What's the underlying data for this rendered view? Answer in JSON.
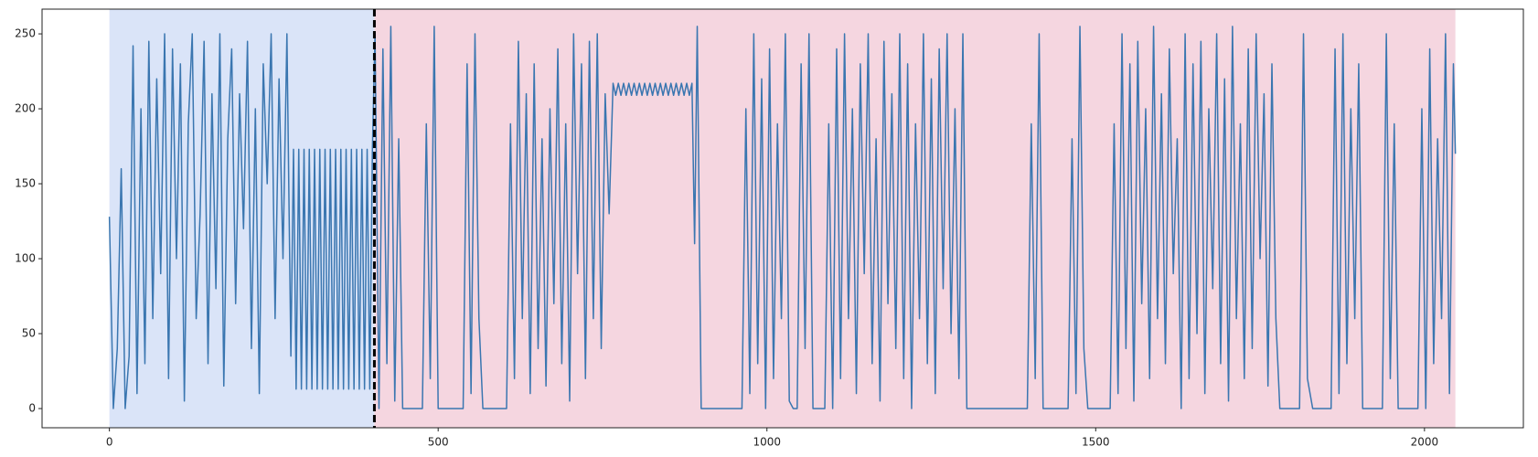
{
  "chart_data": {
    "type": "line",
    "xlim": [
      -102.4,
      2150.4
    ],
    "ylim": [
      -12.8,
      266.5
    ],
    "xticks": [
      0,
      500,
      1000,
      1500,
      2000
    ],
    "yticks": [
      0,
      50,
      100,
      150,
      200,
      250
    ],
    "grid": false,
    "color": "#3a76b0",
    "spans": [
      {
        "start": 0,
        "end": 403,
        "color": "#dae4f8"
      },
      {
        "start": 403,
        "end": 2047,
        "color": "#f5d6e0"
      }
    ],
    "vline": 403,
    "x": [
      0,
      6,
      12,
      18,
      24,
      30,
      36,
      42,
      48,
      54,
      60,
      66,
      72,
      78,
      84,
      90,
      96,
      102,
      108,
      114,
      120,
      126,
      132,
      138,
      144,
      150,
      156,
      162,
      168,
      174,
      180,
      186,
      192,
      198,
      204,
      210,
      216,
      222,
      228,
      234,
      240,
      246,
      252,
      258,
      264,
      270,
      276,
      280,
      284,
      288,
      292,
      296,
      300,
      304,
      308,
      312,
      316,
      320,
      324,
      328,
      332,
      336,
      340,
      344,
      348,
      352,
      356,
      360,
      364,
      368,
      372,
      376,
      380,
      384,
      388,
      392,
      396,
      400,
      404,
      410,
      416,
      422,
      428,
      434,
      440,
      446,
      476,
      482,
      488,
      494,
      500,
      538,
      544,
      550,
      556,
      562,
      568,
      604,
      610,
      616,
      622,
      628,
      634,
      640,
      646,
      652,
      658,
      664,
      670,
      676,
      682,
      688,
      694,
      700,
      706,
      712,
      718,
      724,
      730,
      736,
      742,
      748,
      754,
      760,
      766,
      770,
      774,
      778,
      782,
      786,
      790,
      794,
      798,
      802,
      806,
      810,
      814,
      818,
      822,
      826,
      830,
      834,
      838,
      842,
      846,
      850,
      854,
      858,
      862,
      866,
      870,
      874,
      878,
      882,
      886,
      890,
      894,
      900,
      956,
      962,
      968,
      974,
      980,
      986,
      992,
      998,
      1004,
      1010,
      1016,
      1022,
      1028,
      1034,
      1040,
      1046,
      1052,
      1058,
      1064,
      1070,
      1076,
      1082,
      1088,
      1094,
      1100,
      1106,
      1112,
      1118,
      1124,
      1130,
      1136,
      1142,
      1148,
      1154,
      1160,
      1166,
      1172,
      1178,
      1184,
      1190,
      1196,
      1202,
      1208,
      1214,
      1220,
      1226,
      1232,
      1238,
      1244,
      1250,
      1256,
      1262,
      1268,
      1274,
      1280,
      1286,
      1292,
      1298,
      1304,
      1396,
      1402,
      1408,
      1414,
      1420,
      1458,
      1464,
      1470,
      1476,
      1482,
      1488,
      1522,
      1528,
      1534,
      1540,
      1546,
      1552,
      1558,
      1564,
      1570,
      1576,
      1582,
      1588,
      1594,
      1600,
      1606,
      1612,
      1618,
      1624,
      1630,
      1636,
      1642,
      1648,
      1654,
      1660,
      1666,
      1672,
      1678,
      1684,
      1690,
      1696,
      1702,
      1708,
      1714,
      1720,
      1726,
      1732,
      1738,
      1744,
      1750,
      1756,
      1762,
      1768,
      1774,
      1780,
      1810,
      1816,
      1822,
      1830,
      1858,
      1864,
      1870,
      1876,
      1882,
      1888,
      1894,
      1900,
      1906,
      1936,
      1942,
      1948,
      1954,
      1960,
      1990,
      1996,
      2002,
      2008,
      2014,
      2020,
      2026,
      2032,
      2038,
      2044,
      2047
    ],
    "values": [
      128,
      0,
      40,
      160,
      0,
      35,
      242,
      10,
      200,
      30,
      245,
      60,
      220,
      90,
      250,
      20,
      240,
      100,
      230,
      5,
      190,
      250,
      60,
      130,
      245,
      30,
      210,
      80,
      250,
      15,
      180,
      240,
      70,
      210,
      120,
      245,
      40,
      200,
      10,
      230,
      150,
      250,
      60,
      220,
      100,
      250,
      35,
      173,
      13,
      173,
      13,
      173,
      13,
      173,
      13,
      173,
      13,
      173,
      13,
      173,
      13,
      173,
      13,
      173,
      13,
      173,
      13,
      173,
      13,
      173,
      13,
      173,
      13,
      173,
      13,
      173,
      13,
      173,
      250,
      0,
      240,
      30,
      255,
      5,
      180,
      0,
      0,
      190,
      20,
      255,
      0,
      0,
      230,
      10,
      250,
      60,
      0,
      0,
      190,
      20,
      245,
      60,
      210,
      10,
      230,
      40,
      180,
      15,
      200,
      70,
      240,
      30,
      190,
      5,
      250,
      90,
      230,
      20,
      245,
      60,
      250,
      40,
      210,
      130,
      217,
      209,
      217,
      209,
      217,
      209,
      217,
      209,
      217,
      209,
      217,
      209,
      217,
      209,
      217,
      209,
      217,
      209,
      217,
      209,
      217,
      209,
      217,
      209,
      217,
      209,
      217,
      209,
      217,
      209,
      217,
      110,
      255,
      0,
      0,
      0,
      200,
      10,
      250,
      30,
      220,
      0,
      240,
      20,
      190,
      60,
      250,
      5,
      0,
      0,
      230,
      40,
      250,
      0,
      0,
      0,
      0,
      190,
      0,
      240,
      20,
      250,
      60,
      200,
      10,
      230,
      90,
      250,
      30,
      180,
      5,
      245,
      70,
      210,
      40,
      250,
      20,
      230,
      0,
      190,
      60,
      250,
      30,
      220,
      10,
      240,
      80,
      250,
      50,
      200,
      20,
      250,
      0,
      0,
      190,
      20,
      250,
      0,
      0,
      180,
      10,
      255,
      40,
      0,
      0,
      190,
      10,
      250,
      40,
      230,
      5,
      245,
      70,
      200,
      20,
      255,
      60,
      210,
      30,
      240,
      90,
      180,
      0,
      250,
      20,
      230,
      50,
      245,
      10,
      200,
      80,
      250,
      30,
      220,
      5,
      255,
      60,
      190,
      20,
      240,
      40,
      250,
      100,
      210,
      15,
      230,
      60,
      0,
      0,
      250,
      20,
      0,
      0,
      240,
      10,
      250,
      30,
      200,
      60,
      230,
      0,
      0,
      250,
      20,
      190,
      0,
      0,
      200,
      0,
      240,
      30,
      180,
      60,
      250,
      10,
      230,
      170
    ]
  }
}
